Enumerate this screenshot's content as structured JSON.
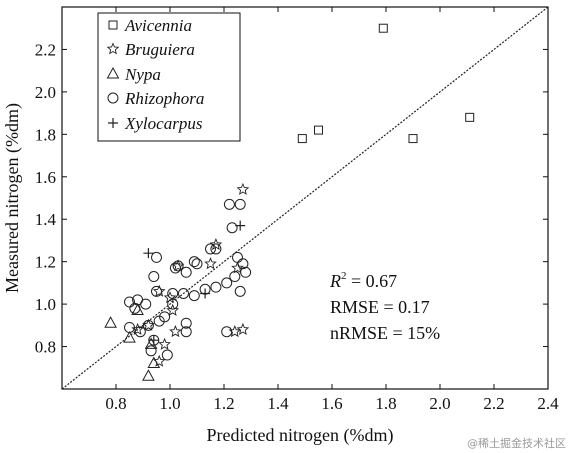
{
  "chart_data": {
    "type": "scatter",
    "xlabel": "Predicted nitrogen (%dm)",
    "ylabel": "Measured nitrogen (%dm)",
    "xlim": [
      0.6,
      2.4
    ],
    "ylim": [
      0.6,
      2.4
    ],
    "xticks": [
      "0.8",
      "1.0",
      "1.2",
      "1.4",
      "1.6",
      "1.8",
      "2.0",
      "2.2",
      "2.4"
    ],
    "yticks": [
      "0.8",
      "1.0",
      "1.2",
      "1.4",
      "1.6",
      "1.8",
      "2.0",
      "2.2"
    ],
    "grid": false,
    "legend_position": "top-left",
    "one_to_one_line": true,
    "annotations": {
      "r2_symbol": "R",
      "r2_sup": "2",
      "r2_value": " = 0.67",
      "rmse": "RMSE = 0.17",
      "nrmse": "nRMSE = 15%"
    },
    "series": [
      {
        "name": "Avicennia",
        "marker": "square",
        "points": [
          [
            1.79,
            2.3
          ],
          [
            2.11,
            1.88
          ],
          [
            1.9,
            1.78
          ],
          [
            1.55,
            1.82
          ],
          [
            1.49,
            1.78
          ]
        ]
      },
      {
        "name": "Bruguiera",
        "marker": "star",
        "points": [
          [
            1.27,
            1.54
          ],
          [
            1.17,
            1.28
          ],
          [
            1.15,
            1.19
          ],
          [
            1.25,
            1.17
          ],
          [
            1.03,
            1.18
          ],
          [
            0.96,
            1.06
          ],
          [
            1.0,
            1.03
          ],
          [
            1.01,
            0.97
          ],
          [
            0.92,
            0.9
          ],
          [
            0.88,
            0.88
          ],
          [
            0.98,
            0.81
          ],
          [
            0.96,
            0.73
          ],
          [
            1.02,
            0.87
          ],
          [
            1.24,
            0.87
          ],
          [
            1.27,
            0.88
          ]
        ]
      },
      {
        "name": "Nypa",
        "marker": "triangle",
        "points": [
          [
            0.78,
            0.91
          ],
          [
            0.85,
            0.84
          ],
          [
            0.88,
            0.97
          ],
          [
            0.93,
            0.81
          ],
          [
            0.92,
            0.66
          ],
          [
            0.94,
            0.72
          ]
        ]
      },
      {
        "name": "Rhizophora",
        "marker": "circle",
        "points": [
          [
            1.22,
            1.47
          ],
          [
            1.26,
            1.47
          ],
          [
            1.23,
            1.36
          ],
          [
            1.15,
            1.26
          ],
          [
            1.17,
            1.26
          ],
          [
            1.25,
            1.22
          ],
          [
            1.27,
            1.19
          ],
          [
            1.28,
            1.15
          ],
          [
            1.24,
            1.13
          ],
          [
            1.21,
            1.1
          ],
          [
            1.17,
            1.08
          ],
          [
            1.13,
            1.07
          ],
          [
            1.09,
            1.04
          ],
          [
            1.05,
            1.05
          ],
          [
            1.01,
            1.05
          ],
          [
            1.02,
            1.17
          ],
          [
            1.09,
            1.2
          ],
          [
            1.1,
            1.19
          ],
          [
            1.06,
            1.15
          ],
          [
            1.03,
            1.18
          ],
          [
            0.95,
            1.22
          ],
          [
            0.94,
            1.13
          ],
          [
            0.85,
            1.01
          ],
          [
            0.88,
            1.02
          ],
          [
            0.87,
            0.98
          ],
          [
            0.91,
            1.0
          ],
          [
            0.95,
            1.06
          ],
          [
            0.98,
            0.94
          ],
          [
            0.96,
            0.92
          ],
          [
            0.92,
            0.9
          ],
          [
            0.89,
            0.87
          ],
          [
            0.85,
            0.89
          ],
          [
            0.94,
            0.83
          ],
          [
            0.93,
            0.78
          ],
          [
            0.99,
            0.76
          ],
          [
            1.06,
            0.91
          ],
          [
            1.06,
            0.87
          ],
          [
            1.01,
            1.0
          ],
          [
            1.26,
            1.06
          ],
          [
            1.21,
            0.87
          ]
        ]
      },
      {
        "name": "Xylocarpus",
        "marker": "plus",
        "points": [
          [
            0.92,
            1.24
          ],
          [
            1.26,
            1.37
          ],
          [
            1.13,
            1.05
          ],
          [
            0.94,
            0.83
          ]
        ]
      }
    ]
  },
  "watermark": "@稀土掘金技术社区"
}
